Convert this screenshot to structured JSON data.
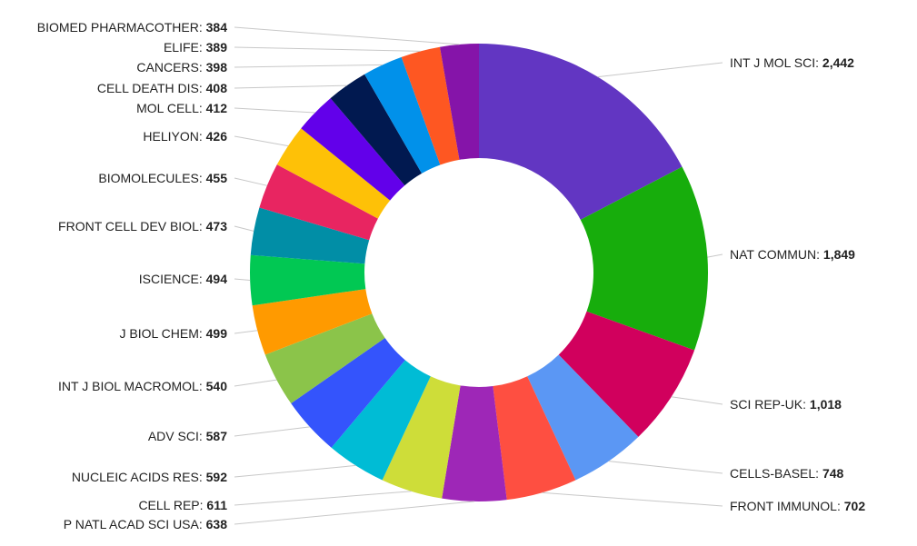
{
  "chart_data": {
    "type": "pie",
    "variant": "donut",
    "title": "",
    "start_angle_deg": 0,
    "direction": "clockwise",
    "slices": [
      {
        "label": "INT J MOL SCI",
        "value_text": "2,442",
        "value": 2442,
        "color": "#6236c2",
        "side": "right"
      },
      {
        "label": "NAT COMMUN",
        "value_text": "1,849",
        "value": 1849,
        "color": "#17ad0c",
        "side": "right"
      },
      {
        "label": "SCI REP-UK",
        "value_text": "1,018",
        "value": 1018,
        "color": "#d1005d",
        "side": "right"
      },
      {
        "label": "CELLS-BASEL",
        "value_text": "748",
        "value": 748,
        "color": "#5b97f4",
        "side": "right"
      },
      {
        "label": "FRONT IMMUNOL",
        "value_text": "702",
        "value": 702,
        "color": "#fe4f41",
        "side": "right"
      },
      {
        "label": "P NATL ACAD SCI USA",
        "value_text": "638",
        "value": 638,
        "color": "#9e27b7",
        "side": "left"
      },
      {
        "label": "CELL REP",
        "value_text": "611",
        "value": 611,
        "color": "#cedd39",
        "side": "left"
      },
      {
        "label": "NUCLEIC ACIDS RES",
        "value_text": "592",
        "value": 592,
        "color": "#00bcd5",
        "side": "left"
      },
      {
        "label": "ADV SCI",
        "value_text": "587",
        "value": 587,
        "color": "#3454fc",
        "side": "left"
      },
      {
        "label": "INT J BIOL MACROMOL",
        "value_text": "540",
        "value": 540,
        "color": "#8bc44a",
        "side": "left"
      },
      {
        "label": "J BIOL CHEM",
        "value_text": "499",
        "value": 499,
        "color": "#ff9a00",
        "side": "left"
      },
      {
        "label": "ISCIENCE",
        "value_text": "494",
        "value": 494,
        "color": "#01c853",
        "side": "left"
      },
      {
        "label": "FRONT CELL DEV BIOL",
        "value_text": "473",
        "value": 473,
        "color": "#018ea6",
        "side": "left"
      },
      {
        "label": "BIOMOLECULES",
        "value_text": "455",
        "value": 455,
        "color": "#e82561",
        "side": "left"
      },
      {
        "label": "HELIYON",
        "value_text": "426",
        "value": 426,
        "color": "#fec107",
        "side": "left"
      },
      {
        "label": "MOL CELL",
        "value_text": "412",
        "value": 412,
        "color": "#6200ea",
        "side": "left"
      },
      {
        "label": "CELL DEATH DIS",
        "value_text": "408",
        "value": 408,
        "color": "#011950",
        "side": "left"
      },
      {
        "label": "CANCERS",
        "value_text": "398",
        "value": 398,
        "color": "#0191ea",
        "side": "left"
      },
      {
        "label": "ELIFE",
        "value_text": "389",
        "value": 389,
        "color": "#fe5722",
        "side": "left"
      },
      {
        "label": "BIOMED PHARMACOTHER",
        "value_text": "384",
        "value": 384,
        "color": "#8514a9",
        "side": "left"
      }
    ]
  }
}
